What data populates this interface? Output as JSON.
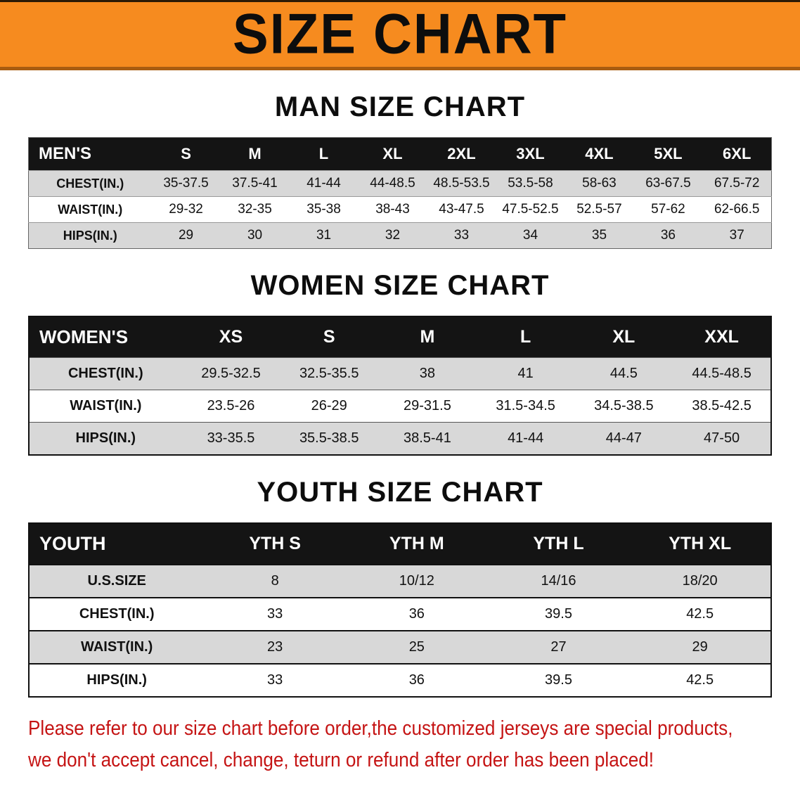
{
  "banner": {
    "title": "SIZE CHART"
  },
  "colors": {
    "banner_bg": "#f68b1f",
    "table_header_bg": "#141414",
    "row_alt_bg": "#d8d8d8",
    "notice_text": "#c51414"
  },
  "sections": [
    {
      "id": "men",
      "heading": "MAN SIZE CHART",
      "table": {
        "header": [
          "MEN'S",
          "S",
          "M",
          "L",
          "XL",
          "2XL",
          "3XL",
          "4XL",
          "5XL",
          "6XL"
        ],
        "rows": [
          {
            "label": "CHEST(IN.)",
            "values": [
              "35-37.5",
              "37.5-41",
              "41-44",
              "44-48.5",
              "48.5-53.5",
              "53.5-58",
              "58-63",
              "63-67.5",
              "67.5-72"
            ]
          },
          {
            "label": "WAIST(IN.)",
            "values": [
              "29-32",
              "32-35",
              "35-38",
              "38-43",
              "43-47.5",
              "47.5-52.5",
              "52.5-57",
              "57-62",
              "62-66.5"
            ]
          },
          {
            "label": "HIPS(IN.)",
            "values": [
              "29",
              "30",
              "31",
              "32",
              "33",
              "34",
              "35",
              "36",
              "37"
            ]
          }
        ]
      }
    },
    {
      "id": "women",
      "heading": "WOMEN SIZE CHART",
      "table": {
        "header": [
          "WOMEN'S",
          "XS",
          "S",
          "M",
          "L",
          "XL",
          "XXL"
        ],
        "rows": [
          {
            "label": "CHEST(IN.)",
            "values": [
              "29.5-32.5",
              "32.5-35.5",
              "38",
              "41",
              "44.5",
              "44.5-48.5"
            ]
          },
          {
            "label": "WAIST(IN.)",
            "values": [
              "23.5-26",
              "26-29",
              "29-31.5",
              "31.5-34.5",
              "34.5-38.5",
              "38.5-42.5"
            ]
          },
          {
            "label": "HIPS(IN.)",
            "values": [
              "33-35.5",
              "35.5-38.5",
              "38.5-41",
              "41-44",
              "44-47",
              "47-50"
            ]
          }
        ]
      }
    },
    {
      "id": "youth",
      "heading": "YOUTH SIZE CHART",
      "table": {
        "header": [
          "YOUTH",
          "YTH S",
          "YTH M",
          "YTH L",
          "YTH XL"
        ],
        "rows": [
          {
            "label": "U.S.SIZE",
            "values": [
              "8",
              "10/12",
              "14/16",
              "18/20"
            ]
          },
          {
            "label": "CHEST(IN.)",
            "values": [
              "33",
              "36",
              "39.5",
              "42.5"
            ]
          },
          {
            "label": "WAIST(IN.)",
            "values": [
              "23",
              "25",
              "27",
              "29"
            ]
          },
          {
            "label": "HIPS(IN.)",
            "values": [
              "33",
              "36",
              "39.5",
              "42.5"
            ]
          }
        ]
      }
    }
  ],
  "notice": {
    "line1": "Please refer to our size chart before order,the customized jerseys are special products,",
    "line2": "we don't accept cancel, change, teturn or refund after order has been placed!"
  }
}
